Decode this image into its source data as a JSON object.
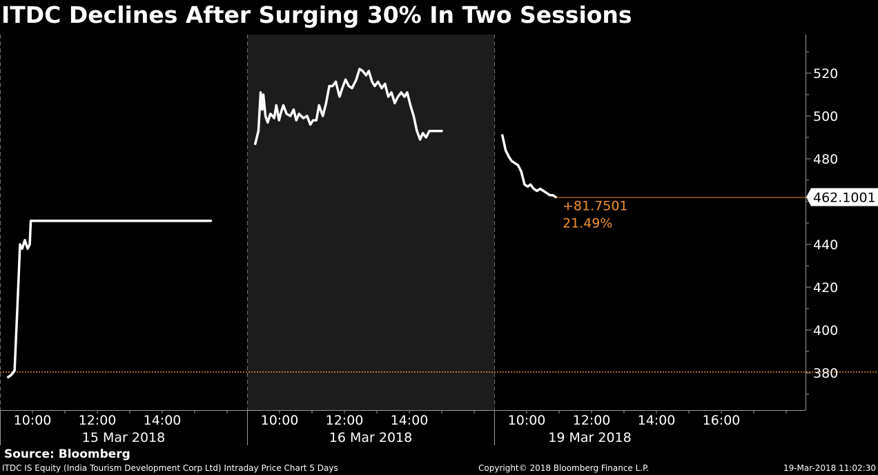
{
  "title": "ITDC Declines After Surging 30% In Two Sessions",
  "source": "Source: Bloomberg",
  "footer": {
    "description": "ITDC IS Equity (India Tourism Development Corp Ltd) Intraday Price Chart 5 Days",
    "copyright": "Copyright© 2018 Bloomberg Finance L.P.",
    "timestamp": "19-Mar-2018 11:02:30"
  },
  "colors": {
    "background": "#000000",
    "price_line": "#ffffff",
    "highlight_session": "#1c1c1c",
    "reference_line": "#f0902c",
    "annotation": "#f0902c"
  },
  "chart_data": {
    "type": "line",
    "title": "ITDC Declines After Surging 30% In Two Sessions",
    "ylim": [
      366,
      534
    ],
    "y_ticks": [
      380,
      400,
      420,
      440,
      460,
      480,
      500,
      520
    ],
    "y_tick_labels": [
      "380",
      "400",
      "420",
      "440",
      "",
      "480",
      "500",
      "520"
    ],
    "grid": false,
    "reference_price": 380.35,
    "last_price_label": "462.1001",
    "change_label": "+81.7501",
    "change_pct_label": "21.49%",
    "sessions": [
      {
        "date": "15 Mar 2018",
        "highlighted": false,
        "tick_labels": [
          "10:00",
          "12:00",
          "14:00"
        ],
        "points": [
          [
            "09:15",
            378
          ],
          [
            "09:21",
            379
          ],
          [
            "09:27",
            381
          ],
          [
            "09:32",
            410
          ],
          [
            "09:37",
            440
          ],
          [
            "09:41",
            438
          ],
          [
            "09:46",
            442
          ],
          [
            "09:51",
            438
          ],
          [
            "09:55",
            440
          ],
          [
            "09:57",
            451
          ],
          [
            "10:30",
            451
          ],
          [
            "11:30",
            451
          ],
          [
            "12:30",
            451
          ],
          [
            "13:30",
            451
          ],
          [
            "14:30",
            451
          ],
          [
            "15:30",
            451
          ]
        ]
      },
      {
        "date": "16 Mar 2018",
        "highlighted": true,
        "tick_labels": [
          "10:00",
          "12:00",
          "14:00"
        ],
        "points": [
          [
            "09:15",
            487
          ],
          [
            "09:21",
            493
          ],
          [
            "09:25",
            511
          ],
          [
            "09:28",
            503
          ],
          [
            "09:30",
            510
          ],
          [
            "09:34",
            500
          ],
          [
            "09:38",
            497
          ],
          [
            "09:43",
            501
          ],
          [
            "09:47",
            500
          ],
          [
            "09:50",
            499
          ],
          [
            "09:54",
            505
          ],
          [
            "09:59",
            498
          ],
          [
            "10:03",
            502
          ],
          [
            "10:07",
            505
          ],
          [
            "10:13",
            501
          ],
          [
            "10:20",
            500
          ],
          [
            "10:26",
            503
          ],
          [
            "10:31",
            498
          ],
          [
            "10:36",
            501
          ],
          [
            "10:44",
            499
          ],
          [
            "10:51",
            500
          ],
          [
            "10:57",
            496
          ],
          [
            "11:02",
            498
          ],
          [
            "11:08",
            498
          ],
          [
            "11:13",
            505
          ],
          [
            "11:20",
            500
          ],
          [
            "11:26",
            506
          ],
          [
            "11:32",
            514
          ],
          [
            "11:38",
            514
          ],
          [
            "11:44",
            516
          ],
          [
            "11:51",
            509
          ],
          [
            "11:56",
            513
          ],
          [
            "12:02",
            517
          ],
          [
            "12:08",
            514
          ],
          [
            "12:14",
            513
          ],
          [
            "12:22",
            517
          ],
          [
            "12:28",
            522
          ],
          [
            "12:34",
            521
          ],
          [
            "12:40",
            519
          ],
          [
            "12:45",
            521
          ],
          [
            "12:51",
            516
          ],
          [
            "12:56",
            514
          ],
          [
            "13:02",
            516
          ],
          [
            "13:09",
            513
          ],
          [
            "13:15",
            515
          ],
          [
            "13:21",
            509
          ],
          [
            "13:27",
            511
          ],
          [
            "13:33",
            506
          ],
          [
            "13:39",
            509
          ],
          [
            "13:45",
            511
          ],
          [
            "13:51",
            509
          ],
          [
            "13:56",
            511
          ],
          [
            "14:02",
            505
          ],
          [
            "14:08",
            500
          ],
          [
            "14:14",
            493
          ],
          [
            "14:20",
            489
          ],
          [
            "14:25",
            492
          ],
          [
            "14:31",
            490
          ],
          [
            "14:37",
            493
          ],
          [
            "15:00",
            493
          ]
        ]
      },
      {
        "date": "19 Mar 2018",
        "highlighted": false,
        "tick_labels": [
          "10:00",
          "12:00",
          "14:00",
          "16:00"
        ],
        "points": [
          [
            "09:15",
            491
          ],
          [
            "09:21",
            484
          ],
          [
            "09:27",
            481
          ],
          [
            "09:32",
            479
          ],
          [
            "09:38",
            478
          ],
          [
            "09:44",
            477
          ],
          [
            "09:50",
            474
          ],
          [
            "09:56",
            468
          ],
          [
            "10:02",
            467
          ],
          [
            "10:07",
            468
          ],
          [
            "10:13",
            466
          ],
          [
            "10:19",
            465
          ],
          [
            "10:25",
            466
          ],
          [
            "10:31",
            465
          ],
          [
            "10:37",
            464
          ],
          [
            "10:43",
            463
          ],
          [
            "10:48",
            463
          ],
          [
            "10:54",
            462.1
          ]
        ]
      }
    ]
  }
}
